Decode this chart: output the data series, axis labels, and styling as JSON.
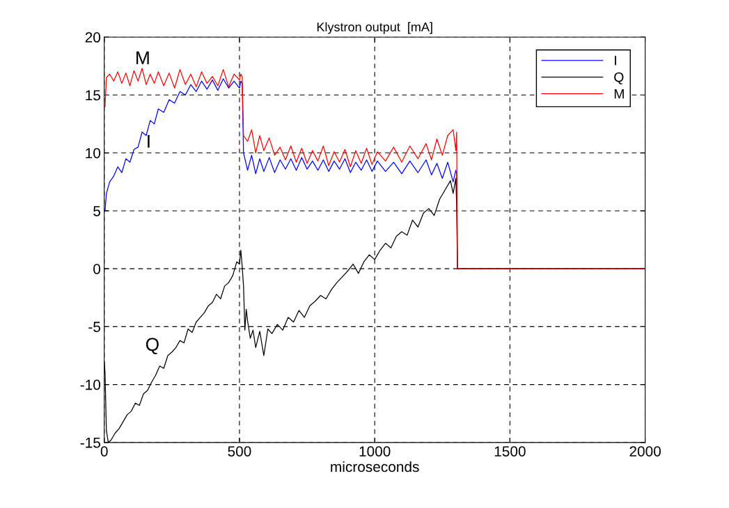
{
  "chart_data": {
    "type": "line",
    "title": "Klystron output  [mA]",
    "xlabel": "microseconds",
    "xlim": [
      0,
      2000
    ],
    "xticks": [
      0,
      500,
      1000,
      1500,
      2000
    ],
    "ylim": [
      -15,
      20
    ],
    "yticks": [
      -15,
      -10,
      -5,
      0,
      5,
      10,
      15,
      20
    ],
    "grid": true,
    "legend": "top right",
    "line_style": "solid",
    "marker": "none",
    "annotations": [
      "M",
      "I",
      "Q"
    ],
    "series": [
      {
        "name": "I",
        "color": "#0000ff",
        "x": [
          3,
          8,
          20,
          35,
          50,
          65,
          80,
          95,
          110,
          125,
          140,
          155,
          170,
          185,
          200,
          220,
          240,
          260,
          280,
          300,
          320,
          340,
          360,
          380,
          400,
          420,
          440,
          460,
          480,
          500,
          505,
          510,
          515,
          530,
          545,
          560,
          575,
          590,
          610,
          630,
          650,
          670,
          690,
          710,
          730,
          750,
          770,
          790,
          810,
          830,
          850,
          870,
          890,
          910,
          930,
          950,
          970,
          990,
          1010,
          1040,
          1070,
          1100,
          1130,
          1160,
          1190,
          1210,
          1230,
          1250,
          1270,
          1290,
          1300,
          1303,
          1306,
          2000
        ],
        "values": [
          5,
          6.5,
          7.5,
          8,
          8.8,
          8.3,
          9.5,
          9.2,
          10.3,
          10.5,
          11.8,
          11.5,
          12.8,
          12.5,
          13.8,
          13.5,
          14.6,
          14.3,
          15.3,
          15,
          15.9,
          15.3,
          16.2,
          15.5,
          16.3,
          15.4,
          16.4,
          15.6,
          16.2,
          15.6,
          16.2,
          16,
          10,
          8.5,
          9.8,
          8.2,
          9.5,
          8.4,
          9.6,
          8.3,
          9.4,
          8.6,
          9.5,
          8.5,
          9.6,
          8.6,
          9.3,
          8.5,
          9.4,
          8.4,
          9.3,
          8.6,
          9.5,
          8.3,
          9.2,
          8.5,
          9.4,
          8.4,
          9.3,
          8.4,
          9.2,
          8.2,
          9.3,
          8.3,
          9.4,
          8.1,
          9.1,
          7.8,
          9.2,
          7.5,
          8.5,
          8.2,
          0,
          0
        ]
      },
      {
        "name": "Q",
        "color": "#000000",
        "x": [
          0,
          3,
          8,
          15,
          25,
          40,
          55,
          70,
          85,
          100,
          115,
          130,
          145,
          160,
          175,
          190,
          205,
          220,
          235,
          250,
          265,
          280,
          295,
          310,
          325,
          340,
          355,
          370,
          385,
          400,
          415,
          430,
          445,
          460,
          475,
          490,
          500,
          505,
          510,
          515,
          520,
          525,
          530,
          540,
          550,
          560,
          575,
          590,
          605,
          620,
          640,
          660,
          680,
          700,
          720,
          740,
          760,
          780,
          800,
          820,
          840,
          860,
          880,
          900,
          920,
          940,
          960,
          980,
          1000,
          1020,
          1040,
          1060,
          1080,
          1100,
          1120,
          1140,
          1160,
          1180,
          1200,
          1220,
          1240,
          1260,
          1280,
          1290,
          1300,
          1303,
          1306,
          2000
        ],
        "values": [
          -8,
          -9,
          -14,
          -15,
          -14.8,
          -14.2,
          -13.8,
          -13.2,
          -12.6,
          -12.3,
          -11.6,
          -11.8,
          -10.8,
          -10.5,
          -9.8,
          -9.2,
          -8.4,
          -8.6,
          -7.5,
          -7.2,
          -6.8,
          -6.2,
          -6.4,
          -5.2,
          -5.5,
          -4.6,
          -4.2,
          -3.8,
          -3.2,
          -2.9,
          -2.2,
          -2.6,
          -1.5,
          -1.2,
          -0.6,
          0.6,
          0.4,
          1.6,
          0.2,
          -1.5,
          -5.3,
          -3.5,
          -4.5,
          -6,
          -5.3,
          -6.8,
          -5.4,
          -7.5,
          -5.2,
          -5.6,
          -4.8,
          -5.3,
          -4.2,
          -4.6,
          -3.6,
          -4.2,
          -3.2,
          -2.8,
          -2.3,
          -2.6,
          -1.8,
          -1.2,
          -0.7,
          -0.2,
          0.4,
          -0.4,
          0.6,
          1.2,
          0.8,
          1.6,
          2.2,
          1.8,
          2.8,
          3.2,
          2.9,
          4.2,
          3.6,
          4.8,
          5.2,
          4.6,
          6,
          6.8,
          7.6,
          6.5,
          7.8,
          5.5,
          0,
          0
        ]
      },
      {
        "name": "M",
        "color": "#ff0000",
        "x": [
          3,
          8,
          20,
          35,
          50,
          65,
          80,
          95,
          110,
          125,
          140,
          155,
          170,
          185,
          200,
          220,
          240,
          260,
          280,
          300,
          320,
          340,
          360,
          380,
          400,
          420,
          440,
          460,
          480,
          500,
          505,
          510,
          515,
          530,
          545,
          560,
          575,
          590,
          610,
          630,
          650,
          670,
          690,
          710,
          730,
          750,
          770,
          790,
          810,
          830,
          850,
          870,
          890,
          910,
          930,
          950,
          970,
          990,
          1010,
          1040,
          1070,
          1100,
          1130,
          1160,
          1190,
          1210,
          1230,
          1250,
          1270,
          1290,
          1300,
          1303,
          1306,
          2000
        ],
        "values": [
          14,
          16.5,
          16.8,
          16.2,
          17,
          16,
          16.9,
          15.8,
          17.1,
          16.2,
          17.3,
          15.9,
          16.8,
          16,
          17,
          15.8,
          16.9,
          15.6,
          17.2,
          15.9,
          16.8,
          15.7,
          17,
          16,
          16.6,
          15.8,
          17.2,
          15.7,
          16.8,
          16.3,
          16.8,
          16.6,
          11.5,
          11,
          12,
          10,
          11.5,
          10.2,
          11.3,
          9.8,
          10.5,
          9.4,
          10.6,
          9.2,
          10.4,
          9.1,
          10.2,
          9.3,
          10.6,
          8.9,
          10.1,
          9.2,
          10.3,
          8.8,
          10.2,
          9.1,
          10.4,
          9,
          10.1,
          9.3,
          10.5,
          9.2,
          10.6,
          9.5,
          10.8,
          9.4,
          11.2,
          9.8,
          11.5,
          12,
          10.2,
          11.8,
          0,
          0
        ]
      }
    ]
  }
}
